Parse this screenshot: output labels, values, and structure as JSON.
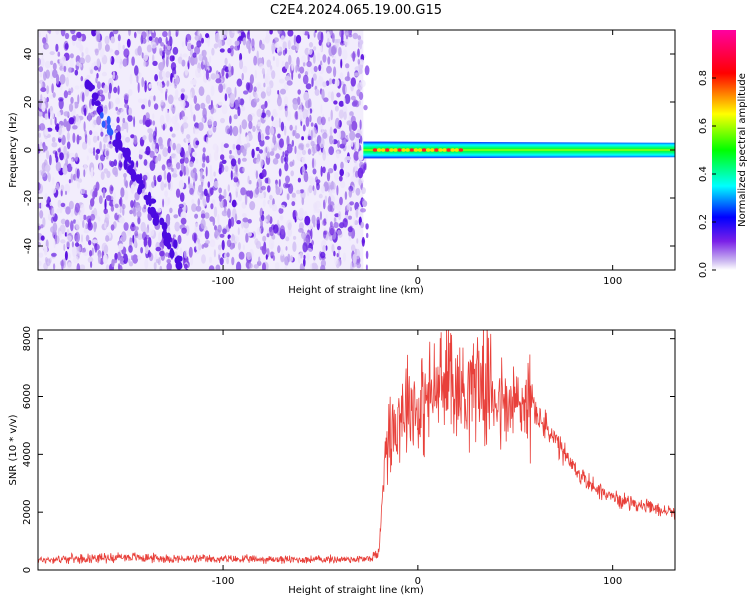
{
  "title": "C2E4.2024.065.19.00.G15",
  "chart_data": [
    {
      "type": "heatmap",
      "xlabel": "Height of straight line (km)",
      "ylabel": "Frequency (Hz)",
      "xlim": [
        -195,
        132
      ],
      "ylim": [
        -50,
        50
      ],
      "x_ticks": [
        -100,
        0,
        100
      ],
      "x_tick_labels": [
        "-100",
        "0",
        "100"
      ],
      "y_ticks": [
        -40,
        -20,
        0,
        20,
        40
      ],
      "y_tick_labels": [
        "-40",
        "-20",
        "0",
        "20",
        "40"
      ],
      "noise_region_x": [
        -195,
        -28
      ],
      "signal_region_x": [
        -28,
        132
      ],
      "signal_frequency_hz": 0,
      "signal_band_halfwidth_hz": [
        3.5,
        3.0
      ],
      "diagonal_streak": {
        "x": [
          -170,
          -120
        ],
        "y": [
          28,
          -50
        ]
      },
      "colorbar": {
        "label": "Normalized spectral amplitude",
        "range": [
          0.0,
          1.0
        ],
        "ticks": [
          0.0,
          0.2,
          0.4,
          0.6,
          0.8
        ],
        "tick_labels": [
          "0.0",
          "0.2",
          "0.4",
          "0.6",
          "0.8"
        ],
        "colors": [
          "#ffffff",
          "#c9b4f0",
          "#7a20e8",
          "#0000ff",
          "#00ffff",
          "#00ff00",
          "#ffff00",
          "#ff0000",
          "#ff00a0"
        ]
      }
    },
    {
      "type": "line",
      "xlabel": "Height of straight line (km)",
      "ylabel": "SNR (10 * v/v)",
      "xlim": [
        -195,
        132
      ],
      "ylim": [
        0,
        8300
      ],
      "x_ticks": [
        -100,
        0,
        100
      ],
      "x_tick_labels": [
        "-100",
        "0",
        "100"
      ],
      "y_ticks": [
        0,
        2000,
        4000,
        6000,
        8000
      ],
      "y_tick_labels": [
        "0",
        "2000",
        "4000",
        "6000",
        "8000"
      ],
      "color": "#e8403a",
      "series": [
        {
          "x": [
            -195,
            -150,
            -120,
            -60,
            -25,
            -20,
            -19,
            -17,
            -15,
            -10,
            -5,
            0,
            5,
            10,
            15,
            17,
            20,
            25,
            30,
            35,
            40,
            45,
            50,
            55,
            60,
            65,
            70,
            75,
            80,
            85,
            90,
            95,
            100,
            105,
            110,
            115,
            120,
            125,
            132
          ],
          "y": [
            350,
            450,
            380,
            360,
            380,
            600,
            1500,
            4300,
            4700,
            5300,
            6000,
            5500,
            5900,
            6300,
            6400,
            7400,
            6100,
            6300,
            6700,
            6300,
            6100,
            5500,
            5700,
            5800,
            5500,
            5000,
            4500,
            4000,
            3500,
            3200,
            2900,
            2700,
            2500,
            2400,
            2350,
            2200,
            2150,
            2050,
            2000
          ]
        }
      ]
    }
  ]
}
